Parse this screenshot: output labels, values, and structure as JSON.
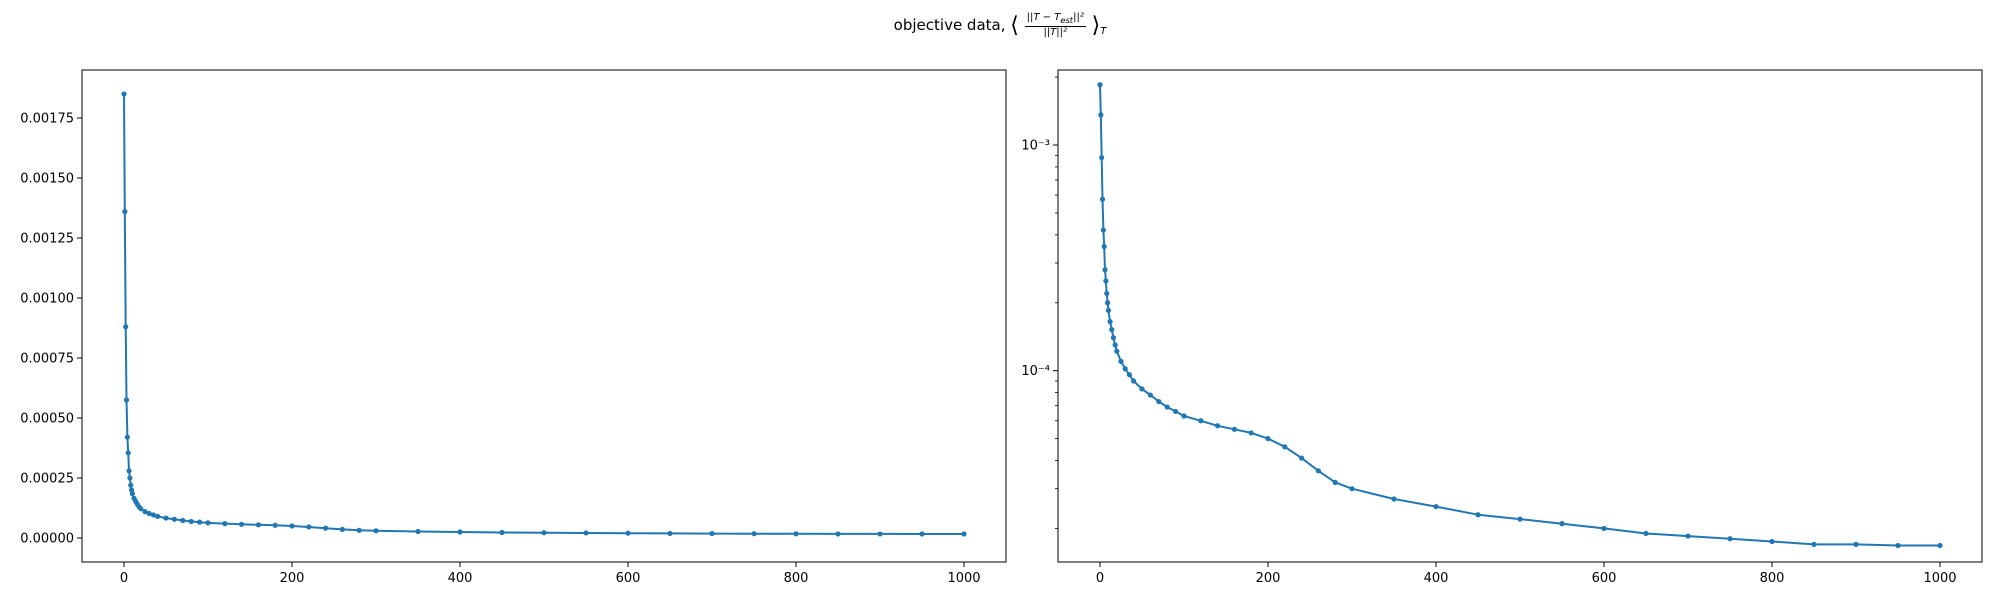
{
  "figure": {
    "title_prefix": "objective data, ",
    "title_num": "||T − T",
    "title_num_sub": "est",
    "title_num_suffix": "||²",
    "title_den": "||T||²",
    "title_open": "⟨",
    "title_close": "⟩",
    "title_sub": "T"
  },
  "chart_data": [
    {
      "type": "line",
      "yscale": "linear",
      "marker": "dot",
      "color": "#1f77b4",
      "xlim": [
        -50,
        1050
      ],
      "ylim": [
        -0.0001,
        0.00195
      ],
      "xticks": [
        0,
        200,
        400,
        600,
        800,
        1000
      ],
      "xtick_labels": [
        "0",
        "200",
        "400",
        "600",
        "800",
        "1000"
      ],
      "yticks": [
        0,
        0.00025,
        0.0005,
        0.00075,
        0.001,
        0.00125,
        0.0015,
        0.00175
      ],
      "ytick_labels": [
        "0.00000",
        "0.00025",
        "0.00050",
        "0.00075",
        "0.00100",
        "0.00125",
        "0.00150",
        "0.00175"
      ],
      "series": [
        {
          "x": [
            0,
            1,
            2,
            3,
            4,
            5,
            6,
            7,
            8,
            9,
            10,
            12,
            14,
            16,
            18,
            20,
            25,
            30,
            35,
            40,
            50,
            60,
            70,
            80,
            90,
            100,
            120,
            140,
            160,
            180,
            200,
            220,
            240,
            260,
            280,
            300,
            350,
            400,
            450,
            500,
            550,
            600,
            650,
            700,
            750,
            800,
            850,
            900,
            950,
            1000
          ],
          "y": [
            0.00185,
            0.00136,
            0.00088,
            0.000575,
            0.00042,
            0.000355,
            0.00028,
            0.00025,
            0.00022,
            0.0002,
            0.000185,
            0.000165,
            0.000152,
            0.00014,
            0.00013,
            0.000122,
            0.00011,
            0.000102,
            9.6e-05,
            9e-05,
            8.3e-05,
            7.8e-05,
            7.3e-05,
            6.9e-05,
            6.6e-05,
            6.3e-05,
            6e-05,
            5.7e-05,
            5.5e-05,
            5.3e-05,
            5e-05,
            4.6e-05,
            4.1e-05,
            3.6e-05,
            3.2e-05,
            3e-05,
            2.7e-05,
            2.5e-05,
            2.3e-05,
            2.2e-05,
            2.1e-05,
            2e-05,
            1.9e-05,
            1.85e-05,
            1.8e-05,
            1.75e-05,
            1.7e-05,
            1.7e-05,
            1.68e-05,
            1.68e-05
          ]
        }
      ]
    },
    {
      "type": "line",
      "yscale": "log",
      "marker": "dot",
      "color": "#1f77b4",
      "xlim": [
        -50,
        1050
      ],
      "ylim": [
        1.42e-05,
        0.00215
      ],
      "xticks": [
        0,
        200,
        400,
        600,
        800,
        1000
      ],
      "xtick_labels": [
        "0",
        "200",
        "400",
        "600",
        "800",
        "1000"
      ],
      "yticks": [
        0.001,
        0.0001
      ],
      "ytick_labels": [
        "10⁻³",
        "10⁻⁴"
      ],
      "series": [
        {
          "x": [
            0,
            1,
            2,
            3,
            4,
            5,
            6,
            7,
            8,
            9,
            10,
            12,
            14,
            16,
            18,
            20,
            25,
            30,
            35,
            40,
            50,
            60,
            70,
            80,
            90,
            100,
            120,
            140,
            160,
            180,
            200,
            220,
            240,
            260,
            280,
            300,
            350,
            400,
            450,
            500,
            550,
            600,
            650,
            700,
            750,
            800,
            850,
            900,
            950,
            1000
          ],
          "y": [
            0.00185,
            0.00136,
            0.00088,
            0.000575,
            0.00042,
            0.000355,
            0.00028,
            0.00025,
            0.00022,
            0.0002,
            0.000185,
            0.000165,
            0.000152,
            0.00014,
            0.00013,
            0.000122,
            0.00011,
            0.000102,
            9.6e-05,
            9e-05,
            8.3e-05,
            7.8e-05,
            7.3e-05,
            6.9e-05,
            6.6e-05,
            6.3e-05,
            6e-05,
            5.7e-05,
            5.5e-05,
            5.3e-05,
            5e-05,
            4.6e-05,
            4.1e-05,
            3.6e-05,
            3.2e-05,
            3e-05,
            2.7e-05,
            2.5e-05,
            2.3e-05,
            2.2e-05,
            2.1e-05,
            2e-05,
            1.9e-05,
            1.85e-05,
            1.8e-05,
            1.75e-05,
            1.7e-05,
            1.7e-05,
            1.68e-05,
            1.68e-05
          ]
        }
      ]
    }
  ]
}
